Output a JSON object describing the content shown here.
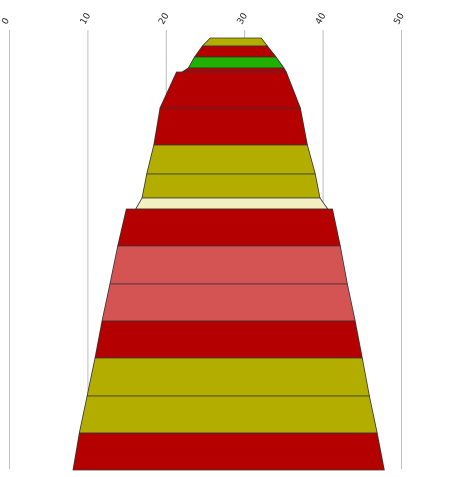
{
  "chart_data": {
    "type": "bar",
    "title": "",
    "xlabel": "",
    "ylabel": "",
    "xlim": [
      0,
      50
    ],
    "grid": true,
    "x_ticks": [
      {
        "value": 0,
        "label": "0"
      },
      {
        "value": 10,
        "label": "10"
      },
      {
        "value": 20,
        "label": "20"
      },
      {
        "value": 30,
        "label": "30"
      },
      {
        "value": 40,
        "label": "40"
      },
      {
        "value": 50,
        "label": "50"
      }
    ],
    "bands": [
      {
        "left_top": 25.6,
        "right_top": 32.1,
        "left_bottom": 24.6,
        "right_bottom": 32.9,
        "color": "#b3ad00"
      },
      {
        "left_top": 24.6,
        "right_top": 32.9,
        "left_bottom": 23.6,
        "right_bottom": 34.0,
        "color": "#b50000"
      },
      {
        "left_top": 23.6,
        "right_top": 34.0,
        "left_bottom": 22.8,
        "right_bottom": 35.0,
        "color": "#1fb000"
      },
      {
        "left_top": 22.8,
        "right_top": 35.0,
        "left_bottom": 22.0,
        "right_bottom": 35.3,
        "color": "#b50000"
      },
      {
        "left_top": 21.3,
        "right_top": 35.3,
        "left_bottom": 19.2,
        "right_bottom": 37.1,
        "color": "#b50000"
      },
      {
        "left_top": 19.2,
        "right_top": 37.1,
        "left_bottom": 18.4,
        "right_bottom": 38.0,
        "color": "#b50000"
      },
      {
        "left_top": 18.4,
        "right_top": 38.0,
        "left_bottom": 17.5,
        "right_bottom": 39.0,
        "color": "#b3ad00"
      },
      {
        "left_top": 17.5,
        "right_top": 39.0,
        "left_bottom": 16.9,
        "right_bottom": 39.6,
        "color": "#b3ad00"
      },
      {
        "left_top": 16.9,
        "right_top": 39.6,
        "left_bottom": 16.1,
        "right_bottom": 40.6,
        "color": "#f2f0c0"
      },
      {
        "left_top": 14.9,
        "right_top": 41.2,
        "left_bottom": 13.8,
        "right_bottom": 42.2,
        "color": "#b50000"
      },
      {
        "left_top": 13.8,
        "right_top": 42.2,
        "left_bottom": 12.8,
        "right_bottom": 43.1,
        "color": "#d45454"
      },
      {
        "left_top": 12.8,
        "right_top": 43.1,
        "left_bottom": 11.8,
        "right_bottom": 44.1,
        "color": "#d45454"
      },
      {
        "left_top": 11.8,
        "right_top": 44.1,
        "left_bottom": 10.9,
        "right_bottom": 45.0,
        "color": "#b50000"
      },
      {
        "left_top": 10.9,
        "right_top": 45.0,
        "left_bottom": 9.9,
        "right_bottom": 45.9,
        "color": "#b3ad00"
      },
      {
        "left_top": 9.9,
        "right_top": 45.9,
        "left_bottom": 8.9,
        "right_bottom": 46.9,
        "color": "#b3ad00"
      },
      {
        "left_top": 8.9,
        "right_top": 46.9,
        "left_bottom": 8.1,
        "right_bottom": 47.8,
        "color": "#b50000"
      }
    ]
  }
}
